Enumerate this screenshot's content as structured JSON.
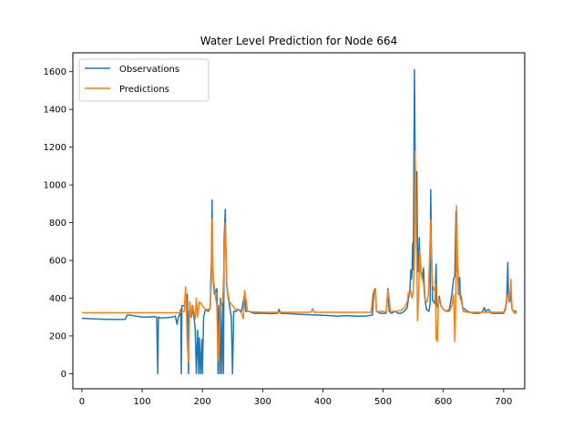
{
  "chart_data": {
    "type": "line",
    "title": "Water Level Prediction for Node 664",
    "xlabel": "",
    "ylabel": "",
    "xlim": [
      -15,
      735
    ],
    "ylim": [
      -80,
      1700
    ],
    "xticks": [
      0,
      100,
      200,
      300,
      400,
      500,
      600,
      700
    ],
    "yticks": [
      0,
      200,
      400,
      600,
      800,
      1000,
      1200,
      1400,
      1600
    ],
    "grid": false,
    "legend": "top-left",
    "series": [
      {
        "name": "Observations",
        "color": "#1f77b4",
        "points": [
          [
            0,
            293
          ],
          [
            20,
            290
          ],
          [
            40,
            288
          ],
          [
            60,
            287
          ],
          [
            72,
            288
          ],
          [
            75,
            310
          ],
          [
            80,
            310
          ],
          [
            90,
            305
          ],
          [
            100,
            300
          ],
          [
            110,
            300
          ],
          [
            120,
            302
          ],
          [
            124,
            300
          ],
          [
            126,
            0
          ],
          [
            127,
            300
          ],
          [
            130,
            295
          ],
          [
            140,
            296
          ],
          [
            150,
            300
          ],
          [
            155,
            305
          ],
          [
            158,
            260
          ],
          [
            160,
            300
          ],
          [
            162,
            310
          ],
          [
            164,
            340
          ],
          [
            165,
            0
          ],
          [
            166,
            360
          ],
          [
            170,
            360
          ],
          [
            172,
            400
          ],
          [
            175,
            420
          ],
          [
            177,
            0
          ],
          [
            178,
            330
          ],
          [
            182,
            300
          ],
          [
            184,
            360
          ],
          [
            188,
            240
          ],
          [
            190,
            0
          ],
          [
            192,
            230
          ],
          [
            194,
            0
          ],
          [
            195,
            190
          ],
          [
            197,
            0
          ],
          [
            199,
            180
          ],
          [
            200,
            0
          ],
          [
            202,
            300
          ],
          [
            205,
            340
          ],
          [
            210,
            330
          ],
          [
            213,
            350
          ],
          [
            214,
            500
          ],
          [
            215,
            600
          ],
          [
            216,
            920
          ],
          [
            217,
            620
          ],
          [
            218,
            500
          ],
          [
            220,
            420
          ],
          [
            224,
            450
          ],
          [
            226,
            0
          ],
          [
            227,
            360
          ],
          [
            229,
            0
          ],
          [
            230,
            400
          ],
          [
            232,
            0
          ],
          [
            234,
            420
          ],
          [
            235,
            0
          ],
          [
            236,
            700
          ],
          [
            238,
            870
          ],
          [
            240,
            480
          ],
          [
            242,
            420
          ],
          [
            245,
            360
          ],
          [
            248,
            300
          ],
          [
            250,
            0
          ],
          [
            252,
            330
          ],
          [
            256,
            330
          ],
          [
            260,
            340
          ],
          [
            265,
            330
          ],
          [
            270,
            420
          ],
          [
            272,
            330
          ],
          [
            278,
            330
          ],
          [
            285,
            320
          ],
          [
            300,
            320
          ],
          [
            315,
            318
          ],
          [
            325,
            320
          ],
          [
            327,
            340
          ],
          [
            330,
            320
          ],
          [
            345,
            318
          ],
          [
            360,
            315
          ],
          [
            380,
            312
          ],
          [
            395,
            310
          ],
          [
            410,
            308
          ],
          [
            425,
            305
          ],
          [
            440,
            308
          ],
          [
            455,
            305
          ],
          [
            470,
            305
          ],
          [
            482,
            310
          ],
          [
            485,
            440
          ],
          [
            487,
            450
          ],
          [
            489,
            330
          ],
          [
            495,
            320
          ],
          [
            505,
            320
          ],
          [
            508,
            450
          ],
          [
            510,
            330
          ],
          [
            514,
            320
          ],
          [
            520,
            330
          ],
          [
            525,
            320
          ],
          [
            530,
            320
          ],
          [
            535,
            330
          ],
          [
            540,
            350
          ],
          [
            542,
            400
          ],
          [
            544,
            420
          ],
          [
            546,
            550
          ],
          [
            547,
            500
          ],
          [
            548,
            540
          ],
          [
            549,
            690
          ],
          [
            550,
            550
          ],
          [
            552,
            1610
          ],
          [
            553,
            1200
          ],
          [
            554,
            900
          ],
          [
            556,
            1070
          ],
          [
            557,
            650
          ],
          [
            558,
            540
          ],
          [
            560,
            720
          ],
          [
            561,
            560
          ],
          [
            563,
            540
          ],
          [
            565,
            500
          ],
          [
            567,
            560
          ],
          [
            568,
            480
          ],
          [
            570,
            380
          ],
          [
            572,
            340
          ],
          [
            576,
            330
          ],
          [
            578,
            370
          ],
          [
            579,
            975
          ],
          [
            580,
            700
          ],
          [
            582,
            390
          ],
          [
            584,
            380
          ],
          [
            586,
            370
          ],
          [
            588,
            580
          ],
          [
            589,
            360
          ],
          [
            591,
            350
          ],
          [
            593,
            410
          ],
          [
            596,
            360
          ],
          [
            600,
            340
          ],
          [
            605,
            330
          ],
          [
            610,
            340
          ],
          [
            614,
            420
          ],
          [
            617,
            500
          ],
          [
            619,
            520
          ],
          [
            621,
            860
          ],
          [
            622,
            540
          ],
          [
            624,
            560
          ],
          [
            625,
            420
          ],
          [
            627,
            510
          ],
          [
            628,
            420
          ],
          [
            630,
            400
          ],
          [
            632,
            350
          ],
          [
            636,
            340
          ],
          [
            640,
            330
          ],
          [
            650,
            320
          ],
          [
            660,
            320
          ],
          [
            665,
            330
          ],
          [
            668,
            350
          ],
          [
            670,
            330
          ],
          [
            675,
            340
          ],
          [
            680,
            320
          ],
          [
            690,
            320
          ],
          [
            700,
            320
          ],
          [
            703,
            340
          ],
          [
            705,
            380
          ],
          [
            707,
            590
          ],
          [
            708,
            400
          ],
          [
            710,
            380
          ],
          [
            712,
            420
          ],
          [
            714,
            340
          ],
          [
            718,
            330
          ],
          [
            722,
            330
          ]
        ]
      },
      {
        "name": "Predictions",
        "color": "#ff7f0e",
        "points": [
          [
            0,
            323
          ],
          [
            100,
            323
          ],
          [
            160,
            323
          ],
          [
            170,
            330
          ],
          [
            172,
            460
          ],
          [
            173,
            400
          ],
          [
            175,
            150
          ],
          [
            177,
            60
          ],
          [
            179,
            380
          ],
          [
            181,
            300
          ],
          [
            183,
            360
          ],
          [
            185,
            330
          ],
          [
            187,
            320
          ],
          [
            188,
            290
          ],
          [
            190,
            400
          ],
          [
            192,
            300
          ],
          [
            195,
            380
          ],
          [
            198,
            370
          ],
          [
            200,
            360
          ],
          [
            205,
            340
          ],
          [
            210,
            340
          ],
          [
            213,
            350
          ],
          [
            215,
            500
          ],
          [
            216,
            820
          ],
          [
            217,
            620
          ],
          [
            218,
            500
          ],
          [
            220,
            460
          ],
          [
            222,
            400
          ],
          [
            224,
            360
          ],
          [
            226,
            80
          ],
          [
            227,
            60
          ],
          [
            228,
            200
          ],
          [
            230,
            350
          ],
          [
            232,
            370
          ],
          [
            234,
            380
          ],
          [
            236,
            600
          ],
          [
            238,
            800
          ],
          [
            240,
            500
          ],
          [
            242,
            430
          ],
          [
            245,
            380
          ],
          [
            250,
            360
          ],
          [
            255,
            340
          ],
          [
            260,
            340
          ],
          [
            265,
            320
          ],
          [
            268,
            290
          ],
          [
            270,
            440
          ],
          [
            272,
            400
          ],
          [
            275,
            330
          ],
          [
            280,
            328
          ],
          [
            300,
            325
          ],
          [
            350,
            325
          ],
          [
            380,
            325
          ],
          [
            383,
            345
          ],
          [
            385,
            325
          ],
          [
            400,
            325
          ],
          [
            480,
            325
          ],
          [
            483,
            420
          ],
          [
            485,
            445
          ],
          [
            487,
            440
          ],
          [
            489,
            330
          ],
          [
            500,
            330
          ],
          [
            505,
            325
          ],
          [
            508,
            440
          ],
          [
            510,
            400
          ],
          [
            512,
            330
          ],
          [
            520,
            330
          ],
          [
            530,
            335
          ],
          [
            535,
            350
          ],
          [
            540,
            380
          ],
          [
            542,
            430
          ],
          [
            544,
            420
          ],
          [
            546,
            440
          ],
          [
            548,
            400
          ],
          [
            550,
            430
          ],
          [
            552,
            620
          ],
          [
            553,
            1180
          ],
          [
            554,
            1000
          ],
          [
            555,
            700
          ],
          [
            556,
            620
          ],
          [
            557,
            280
          ],
          [
            559,
            420
          ],
          [
            561,
            650
          ],
          [
            563,
            540
          ],
          [
            565,
            500
          ],
          [
            567,
            480
          ],
          [
            569,
            400
          ],
          [
            571,
            380
          ],
          [
            573,
            380
          ],
          [
            575,
            420
          ],
          [
            577,
            600
          ],
          [
            579,
            815
          ],
          [
            580,
            600
          ],
          [
            582,
            470
          ],
          [
            585,
            440
          ],
          [
            587,
            470
          ],
          [
            588,
            180
          ],
          [
            589,
            250
          ],
          [
            590,
            170
          ],
          [
            592,
            400
          ],
          [
            594,
            380
          ],
          [
            596,
            360
          ],
          [
            600,
            340
          ],
          [
            605,
            330
          ],
          [
            610,
            330
          ],
          [
            614,
            360
          ],
          [
            617,
            420
          ],
          [
            619,
            170
          ],
          [
            620,
            300
          ],
          [
            621,
            500
          ],
          [
            622,
            890
          ],
          [
            623,
            700
          ],
          [
            624,
            500
          ],
          [
            626,
            440
          ],
          [
            628,
            400
          ],
          [
            630,
            380
          ],
          [
            633,
            330
          ],
          [
            640,
            325
          ],
          [
            650,
            325
          ],
          [
            680,
            325
          ],
          [
            700,
            325
          ],
          [
            703,
            350
          ],
          [
            705,
            400
          ],
          [
            707,
            420
          ],
          [
            709,
            380
          ],
          [
            711,
            440
          ],
          [
            712,
            500
          ],
          [
            714,
            340
          ],
          [
            718,
            320
          ],
          [
            722,
            325
          ]
        ]
      }
    ]
  }
}
